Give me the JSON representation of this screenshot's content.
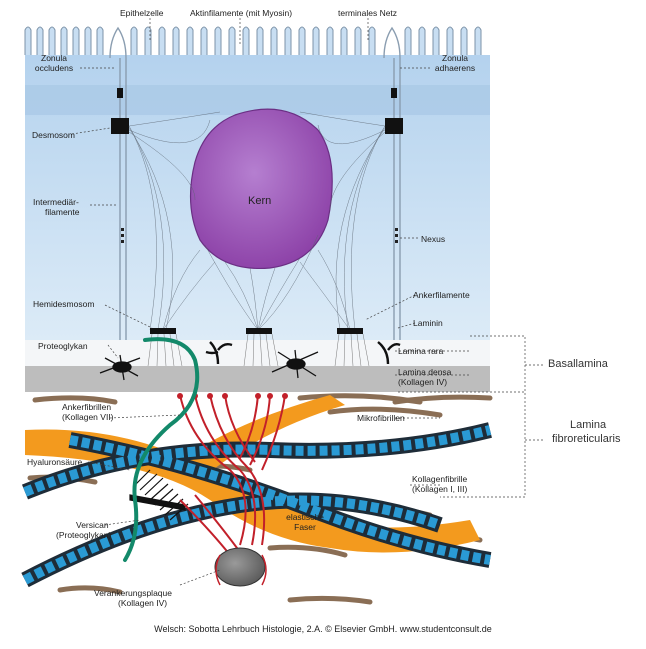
{
  "labels": {
    "epithelzelle": "Epithelzelle",
    "aktinfilamente": "Aktinfilamente (mit Myosin)",
    "terminales_netz": "terminales Netz",
    "zonula_occludens_1": "Zonula",
    "zonula_occludens_2": "occludens",
    "zonula_adhaerens_1": "Zonula",
    "zonula_adhaerens_2": "adhaerens",
    "desmosom": "Desmosom",
    "kern": "Kern",
    "intermediaer_1": "Intermediär-",
    "intermediaer_2": "filamente",
    "nexus": "Nexus",
    "hemidesmosom": "Hemidesmosom",
    "ankerfilamente": "Ankerfilamente",
    "laminin": "Laminin",
    "proteoglykan": "Proteoglykan",
    "lamina_rara": "Lamina rara",
    "lamina_densa_1": "Lamina densa",
    "lamina_densa_2": "(Kollagen IV)",
    "basallamina": "Basallamina",
    "ankerfibrillen_1": "Ankerfibrillen",
    "ankerfibrillen_2": "(Kollagen VII)",
    "mikrofibrillen": "Mikrofibrillen",
    "lamina_fibro_1": "Lamina",
    "lamina_fibro_2": "fibroreticularis",
    "hyaluronsaeure": "Hyaluronsäure",
    "kollagenfibrille_1": "Kollagenfibrille",
    "kollagenfibrille_2": "(Kollagen I, III)",
    "versican_1": "Versican",
    "versican_2": "(Proteoglykan)",
    "elastische_1": "elastische",
    "elastische_2": "Faser",
    "verankerung_1": "Verankerungsplaque",
    "verankerung_2": "(Kollagen IV)"
  },
  "credit": "Welsch: Sobotta Lehrbuch Histologie, 2.A. © Elsevier GmbH. www.studentconsult.de",
  "colors": {
    "cell_fill": "#c7dff3",
    "cell_border": "#9fb6cc",
    "nucleus": "#9a4fb4",
    "collagen_blue": "#2a9ad4",
    "collagen_dark": "#1e2c38",
    "elastic_orange": "#f39a1e",
    "hyaluronan_green": "#13896a",
    "anchor_red": "#c2202a",
    "lamina_densa": "#b8b8b8",
    "microfibril_brown": "#8a6e55"
  }
}
